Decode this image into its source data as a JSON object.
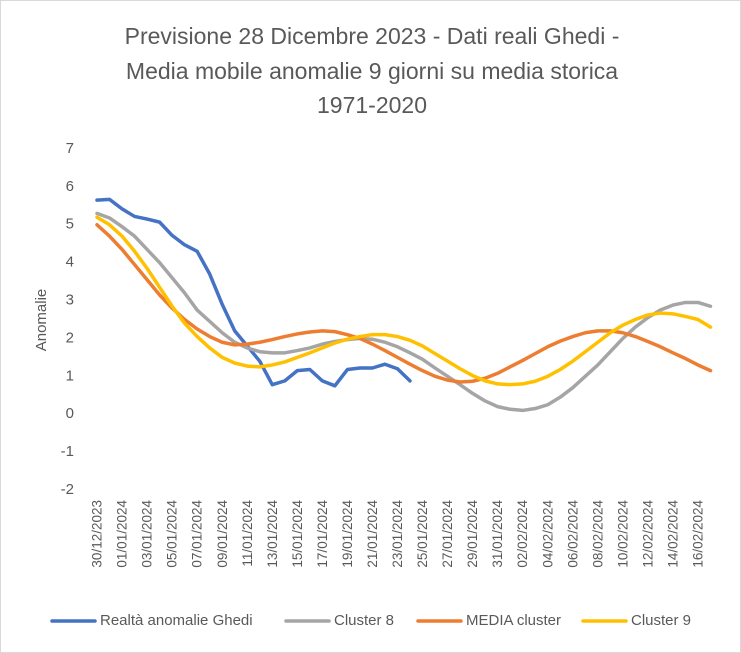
{
  "chart_data": {
    "type": "line",
    "title": [
      "Previsione 28 Dicembre 2023 - Dati reali Ghedi -",
      "Media mobile anomalie 9 giorni su media storica",
      "1971-2020"
    ],
    "y_label": "Anomalie",
    "categories": [
      "30/12/2023",
      null,
      "01/01/2024",
      null,
      "03/01/2024",
      null,
      "05/01/2024",
      null,
      "07/01/2024",
      null,
      "09/01/2024",
      null,
      "11/01/2024",
      null,
      "13/01/2024",
      null,
      "15/01/2024",
      null,
      "17/01/2024",
      null,
      "19/01/2024",
      null,
      "21/01/2024",
      null,
      "23/01/2024",
      null,
      "25/01/2024",
      null,
      "27/01/2024",
      null,
      "29/01/2024",
      null,
      "31/01/2024",
      null,
      "02/02/2024",
      null,
      "04/02/2024",
      null,
      "06/02/2024",
      null,
      "08/02/2024",
      null,
      "10/02/2024",
      null,
      "12/02/2024",
      null,
      "14/02/2024",
      null,
      "16/02/2024",
      null
    ],
    "series": [
      {
        "name": "Realtà anomalie Ghedi",
        "color": "#4472c4",
        "values": [
          5.65,
          5.67,
          5.42,
          5.22,
          5.15,
          5.07,
          4.72,
          4.47,
          4.3,
          3.7,
          2.9,
          2.2,
          1.8,
          1.4,
          0.78,
          0.88,
          1.15,
          1.18,
          0.88,
          0.75,
          1.18,
          1.22,
          1.22,
          1.32,
          1.2,
          0.88,
          null,
          null,
          null,
          null,
          null,
          null,
          null,
          null,
          null,
          null,
          null,
          null,
          null,
          null,
          null,
          null,
          null,
          null,
          null,
          null,
          null,
          null,
          null,
          null
        ]
      },
      {
        "name": "Cluster 8",
        "color": "#a5a5a5",
        "values": [
          5.3,
          5.18,
          4.95,
          4.7,
          4.35,
          4.0,
          3.6,
          3.2,
          2.75,
          2.45,
          2.15,
          1.9,
          1.75,
          1.65,
          1.62,
          1.62,
          1.68,
          1.75,
          1.85,
          1.92,
          1.97,
          2.0,
          1.98,
          1.9,
          1.78,
          1.62,
          1.45,
          1.22,
          1.0,
          0.78,
          0.55,
          0.35,
          0.2,
          0.13,
          0.1,
          0.15,
          0.25,
          0.45,
          0.7,
          1.0,
          1.3,
          1.65,
          2.0,
          2.3,
          2.55,
          2.75,
          2.88,
          2.95,
          2.95,
          2.85
        ]
      },
      {
        "name": "MEDIA cluster",
        "color": "#ed7d31",
        "values": [
          5.0,
          4.7,
          4.35,
          3.95,
          3.55,
          3.15,
          2.8,
          2.5,
          2.25,
          2.05,
          1.9,
          1.83,
          1.85,
          1.9,
          1.97,
          2.05,
          2.12,
          2.17,
          2.2,
          2.18,
          2.1,
          2.0,
          1.85,
          1.68,
          1.5,
          1.32,
          1.15,
          1.0,
          0.9,
          0.85,
          0.87,
          0.95,
          1.08,
          1.25,
          1.42,
          1.6,
          1.78,
          1.93,
          2.05,
          2.15,
          2.2,
          2.2,
          2.15,
          2.05,
          1.92,
          1.78,
          1.62,
          1.47,
          1.3,
          1.15
        ]
      },
      {
        "name": "Cluster 9",
        "color": "#ffc000",
        "values": [
          5.2,
          5.0,
          4.7,
          4.3,
          3.85,
          3.35,
          2.85,
          2.4,
          2.05,
          1.75,
          1.5,
          1.35,
          1.27,
          1.25,
          1.3,
          1.38,
          1.5,
          1.62,
          1.75,
          1.88,
          1.98,
          2.05,
          2.1,
          2.1,
          2.05,
          1.95,
          1.8,
          1.6,
          1.4,
          1.2,
          1.02,
          0.88,
          0.8,
          0.78,
          0.8,
          0.87,
          1.0,
          1.18,
          1.4,
          1.65,
          1.9,
          2.15,
          2.35,
          2.5,
          2.62,
          2.67,
          2.65,
          2.58,
          2.5,
          2.3
        ]
      }
    ],
    "ylim": [
      -2,
      7
    ],
    "yticks": [
      -2,
      -1,
      0,
      1,
      2,
      3,
      4,
      5,
      6,
      7
    ],
    "grid": false,
    "legend": "bottom"
  }
}
